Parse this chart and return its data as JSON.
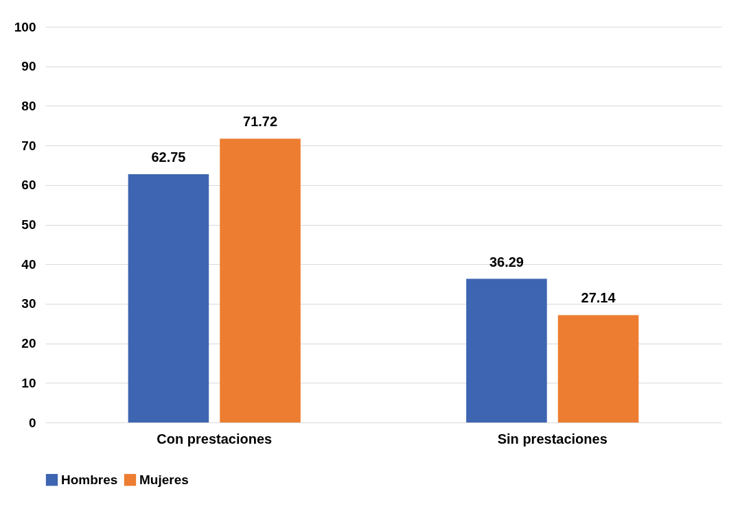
{
  "chart_data": {
    "type": "bar",
    "categories": [
      "Con prestaciones",
      "Sin prestaciones"
    ],
    "series": [
      {
        "name": "Hombres",
        "color": "#3d65b1",
        "values": [
          62.75,
          36.29
        ]
      },
      {
        "name": "Mujeres",
        "color": "#ed7d31",
        "values": [
          71.72,
          27.14
        ]
      }
    ],
    "ylim": [
      0,
      100
    ],
    "yticks": [
      0,
      10,
      20,
      30,
      40,
      50,
      60,
      70,
      80,
      90,
      100
    ],
    "grid": "y",
    "legend": "bottom",
    "data_labels": true
  }
}
